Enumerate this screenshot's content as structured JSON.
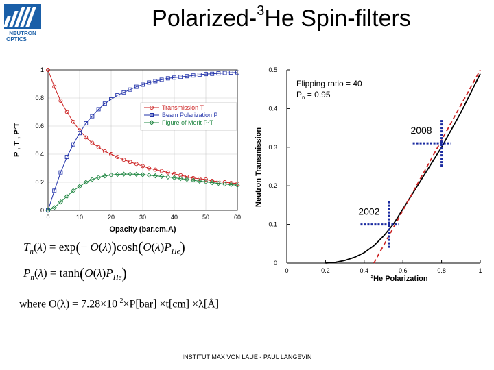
{
  "logo": {
    "text_1": "NEUTRON",
    "text_2": "OPTICS"
  },
  "slide": {
    "title_prefix": "Polarized-",
    "title_sup": "3",
    "title_suffix": "He Spin-filters",
    "where_prefix": "where O(λ) = 7.28×10",
    "where_exp": "-2",
    "where_suffix": "×P[bar] ×t[cm] ×λ[Å]",
    "footer": "INSTITUT MAX VON LAUE - PAUL LANGEVIN"
  },
  "equations": {
    "line1": "Tn(λ) = exp(− O(λ)) cosh(O(λ) PHe)",
    "line2": "Pn(λ) = tanh(O(λ) PHe)"
  },
  "chart_data": [
    {
      "type": "line",
      "xlabel": "Opacity (bar.cm.A)",
      "ylabel": "P , T , P²T",
      "xlim": [
        0,
        60
      ],
      "ylim": [
        0,
        1
      ],
      "x_ticks": [
        "0",
        "10",
        "20",
        "30",
        "40",
        "50",
        "60"
      ],
      "y_ticks": [
        "0",
        "0.2",
        "0.4",
        "0.6",
        "0.8",
        "1"
      ],
      "grid": true,
      "legend_position": "right",
      "series": [
        {
          "name": "Transmission T",
          "color": "#cc2222",
          "marker": "circle",
          "x": [
            0,
            2,
            4,
            6,
            8,
            10,
            12,
            14,
            16,
            18,
            20,
            22,
            24,
            26,
            28,
            30,
            32,
            34,
            36,
            38,
            40,
            42,
            44,
            46,
            48,
            50,
            52,
            54,
            56,
            58,
            60
          ],
          "y": [
            1.0,
            0.88,
            0.78,
            0.7,
            0.63,
            0.57,
            0.52,
            0.48,
            0.45,
            0.42,
            0.4,
            0.38,
            0.36,
            0.345,
            0.33,
            0.315,
            0.3,
            0.29,
            0.28,
            0.27,
            0.26,
            0.25,
            0.24,
            0.23,
            0.225,
            0.22,
            0.21,
            0.205,
            0.2,
            0.195,
            0.19
          ]
        },
        {
          "name": "Beam Polarization P",
          "color": "#2233aa",
          "marker": "square",
          "x": [
            0,
            2,
            4,
            6,
            8,
            10,
            12,
            14,
            16,
            18,
            20,
            22,
            24,
            26,
            28,
            30,
            32,
            34,
            36,
            38,
            40,
            42,
            44,
            46,
            48,
            50,
            52,
            54,
            56,
            58,
            60
          ],
          "y": [
            0.0,
            0.14,
            0.27,
            0.38,
            0.47,
            0.55,
            0.62,
            0.67,
            0.72,
            0.76,
            0.79,
            0.82,
            0.84,
            0.86,
            0.88,
            0.895,
            0.91,
            0.92,
            0.93,
            0.94,
            0.945,
            0.95,
            0.955,
            0.96,
            0.965,
            0.97,
            0.972,
            0.975,
            0.978,
            0.98,
            0.982
          ]
        },
        {
          "name": "Figure of Merit P²T",
          "color": "#228844",
          "marker": "diamond",
          "x": [
            0,
            2,
            4,
            6,
            8,
            10,
            12,
            14,
            16,
            18,
            20,
            22,
            24,
            26,
            28,
            30,
            32,
            34,
            36,
            38,
            40,
            42,
            44,
            46,
            48,
            50,
            52,
            54,
            56,
            58,
            60
          ],
          "y": [
            0.0,
            0.02,
            0.06,
            0.1,
            0.14,
            0.17,
            0.2,
            0.22,
            0.235,
            0.245,
            0.252,
            0.256,
            0.258,
            0.258,
            0.257,
            0.254,
            0.25,
            0.246,
            0.242,
            0.237,
            0.232,
            0.226,
            0.22,
            0.214,
            0.208,
            0.203,
            0.197,
            0.192,
            0.187,
            0.183,
            0.179
          ]
        }
      ]
    },
    {
      "type": "line",
      "xlabel": "³He Polarization",
      "ylabel": "Neutron Transmission",
      "xlim": [
        0,
        1
      ],
      "ylim": [
        0,
        0.5
      ],
      "x_ticks": [
        "0",
        "0.2",
        "0.4",
        "0.6",
        "0.8",
        "1"
      ],
      "y_ticks": [
        "0",
        "0.1",
        "0.2",
        "0.3",
        "0.4",
        "0.5"
      ],
      "grid": false,
      "notes": [
        "Flipping ratio = 40",
        "P",
        "n",
        " = 0.95"
      ],
      "series": [
        {
          "color": "#000000",
          "style": "solid",
          "x": [
            0.2,
            0.25,
            0.3,
            0.35,
            0.4,
            0.45,
            0.5,
            0.55,
            0.6,
            0.65,
            0.7,
            0.75,
            0.8,
            0.85,
            0.9,
            0.95,
            1.0
          ],
          "y": [
            0.0,
            0.002,
            0.007,
            0.015,
            0.027,
            0.045,
            0.07,
            0.1,
            0.14,
            0.18,
            0.22,
            0.26,
            0.3,
            0.345,
            0.39,
            0.44,
            0.49
          ]
        },
        {
          "color": "#cc2222",
          "style": "dashed",
          "x": [
            0.45,
            1.0
          ],
          "y": [
            0.0,
            0.5
          ]
        }
      ],
      "annotations": [
        {
          "label": "2008",
          "x": 0.8,
          "y": 0.31
        },
        {
          "label": "2002",
          "x": 0.53,
          "y": 0.1
        }
      ]
    }
  ]
}
